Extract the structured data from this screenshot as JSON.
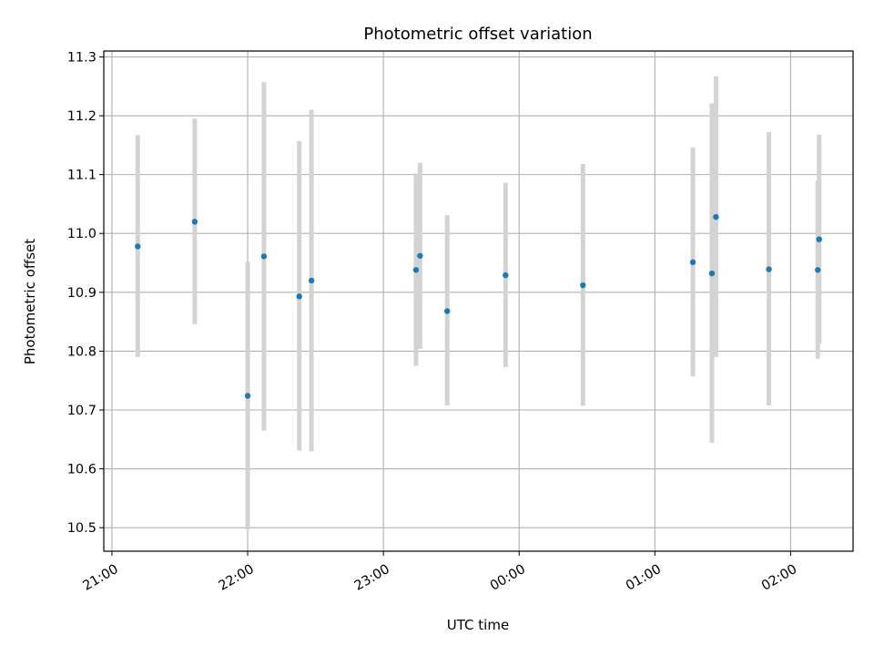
{
  "chart_data": {
    "type": "scatter",
    "title": "Photometric offset variation",
    "xlabel": "UTC time",
    "ylabel": "Photometric offset",
    "x_ticks": [
      "21:00",
      "22:00",
      "23:00",
      "00:00",
      "01:00",
      "02:00"
    ],
    "x_tick_hours": [
      0,
      1,
      2,
      3,
      4,
      5
    ],
    "x_axis_note": "hours after 21:00 UTC",
    "xlim": [
      -0.06,
      5.46
    ],
    "y_ticks": [
      "10.5",
      "10.6",
      "10.7",
      "10.8",
      "10.9",
      "11.0",
      "11.1",
      "11.2",
      "11.3"
    ],
    "ylim": [
      10.46,
      11.31
    ],
    "grid": true,
    "marker_color": "#1f77b4",
    "errorbar_color": "#d3d3d3",
    "points": [
      {
        "t": 0.19,
        "y": 10.978,
        "lo": 10.79,
        "hi": 11.167
      },
      {
        "t": 0.61,
        "y": 11.02,
        "lo": 10.846,
        "hi": 11.195
      },
      {
        "t": 1.0,
        "y": 10.724,
        "lo": 10.497,
        "hi": 10.952
      },
      {
        "t": 1.12,
        "y": 10.961,
        "lo": 10.665,
        "hi": 11.257
      },
      {
        "t": 1.38,
        "y": 10.893,
        "lo": 10.631,
        "hi": 11.157
      },
      {
        "t": 1.47,
        "y": 10.92,
        "lo": 10.63,
        "hi": 11.21
      },
      {
        "t": 2.24,
        "y": 10.938,
        "lo": 10.775,
        "hi": 11.102
      },
      {
        "t": 2.27,
        "y": 10.962,
        "lo": 10.804,
        "hi": 11.12
      },
      {
        "t": 2.47,
        "y": 10.868,
        "lo": 10.708,
        "hi": 11.031
      },
      {
        "t": 2.9,
        "y": 10.929,
        "lo": 10.773,
        "hi": 11.086
      },
      {
        "t": 3.47,
        "y": 10.912,
        "lo": 10.707,
        "hi": 11.118
      },
      {
        "t": 4.28,
        "y": 10.951,
        "lo": 10.757,
        "hi": 11.146
      },
      {
        "t": 4.42,
        "y": 10.932,
        "lo": 10.644,
        "hi": 11.221
      },
      {
        "t": 4.45,
        "y": 11.028,
        "lo": 10.79,
        "hi": 11.267
      },
      {
        "t": 4.84,
        "y": 10.939,
        "lo": 10.708,
        "hi": 11.172
      },
      {
        "t": 5.2,
        "y": 10.938,
        "lo": 10.787,
        "hi": 11.09
      },
      {
        "t": 5.21,
        "y": 10.99,
        "lo": 10.813,
        "hi": 11.168
      }
    ]
  }
}
